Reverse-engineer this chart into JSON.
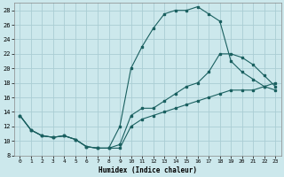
{
  "xlabel": "Humidex (Indice chaleur)",
  "bg_color": "#cce8ec",
  "grid_color": "#aacdd4",
  "line_color": "#1a6060",
  "xlim": [
    -0.5,
    23.5
  ],
  "ylim": [
    8,
    29
  ],
  "xticks": [
    0,
    1,
    2,
    3,
    4,
    5,
    6,
    7,
    8,
    9,
    10,
    11,
    12,
    13,
    14,
    15,
    16,
    17,
    18,
    19,
    20,
    21,
    22,
    23
  ],
  "yticks": [
    8,
    10,
    12,
    14,
    16,
    18,
    20,
    22,
    24,
    26,
    28
  ],
  "line1_x": [
    0,
    1,
    2,
    3,
    4,
    5,
    6,
    7,
    8,
    9,
    10,
    11,
    12,
    13,
    14,
    15,
    16,
    17,
    18,
    19,
    20,
    21,
    22,
    23
  ],
  "line1_y": [
    13.5,
    11.5,
    10.7,
    10.5,
    10.7,
    10.2,
    9.2,
    9.0,
    9.0,
    12.0,
    20.0,
    23.0,
    25.5,
    27.5,
    28.0,
    28.0,
    28.5,
    27.5,
    26.5,
    21.0,
    19.5,
    18.5,
    17.5,
    17.0
  ],
  "line2_x": [
    0,
    1,
    2,
    3,
    4,
    5,
    6,
    7,
    8,
    9,
    10,
    11,
    12,
    13,
    14,
    15,
    16,
    17,
    18,
    19,
    20,
    21,
    22,
    23
  ],
  "line2_y": [
    13.5,
    11.5,
    10.7,
    10.5,
    10.7,
    10.2,
    9.2,
    9.0,
    9.0,
    9.5,
    13.5,
    14.5,
    14.5,
    15.5,
    16.5,
    17.5,
    18.0,
    19.5,
    22.0,
    22.0,
    21.5,
    20.5,
    19.0,
    17.5
  ],
  "line3_x": [
    0,
    1,
    2,
    3,
    4,
    5,
    6,
    7,
    8,
    9,
    10,
    11,
    12,
    13,
    14,
    15,
    16,
    17,
    18,
    19,
    20,
    21,
    22,
    23
  ],
  "line3_y": [
    13.5,
    11.5,
    10.7,
    10.5,
    10.7,
    10.2,
    9.2,
    9.0,
    9.0,
    9.0,
    12.0,
    13.0,
    13.5,
    14.0,
    14.5,
    15.0,
    15.5,
    16.0,
    16.5,
    17.0,
    17.0,
    17.0,
    17.5,
    18.0
  ]
}
